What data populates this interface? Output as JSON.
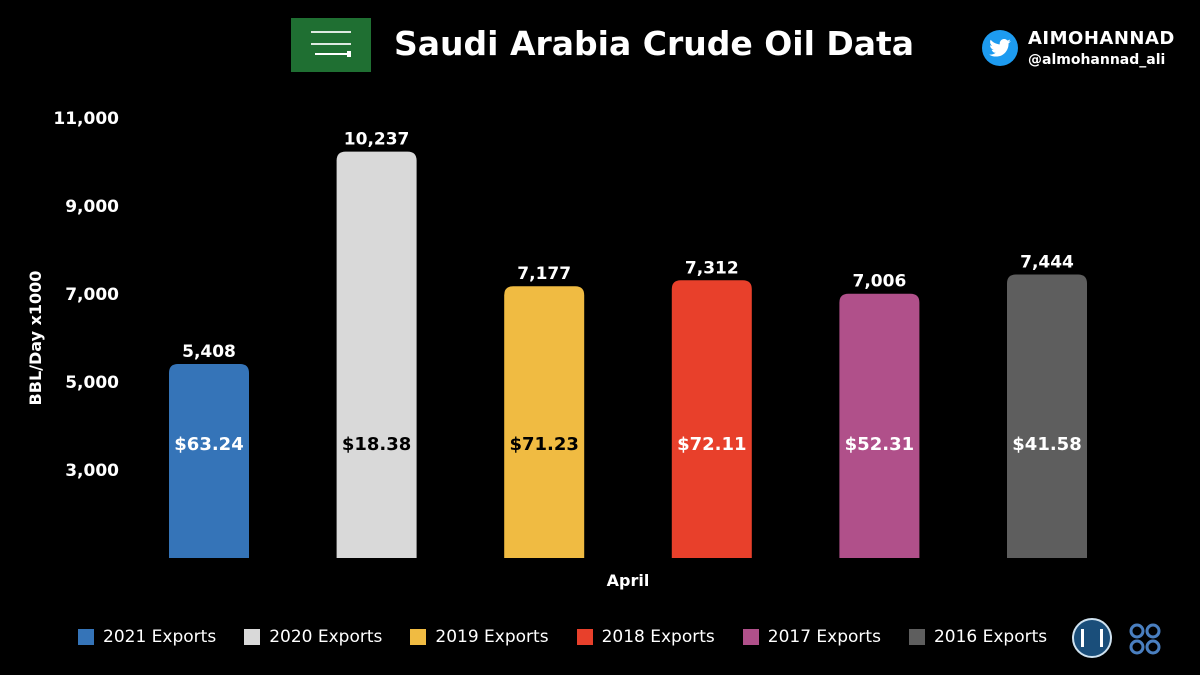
{
  "header": {
    "title": "Saudi Arabia Crude Oil Data",
    "handle_name": "AIMOHANNAD",
    "handle_id": "@almohannad_ali"
  },
  "colors": {
    "background": "#000000",
    "series": [
      "#3574b8",
      "#d9d9d9",
      "#f0bb42",
      "#e8402b",
      "#b0508a",
      "#5e5e5e"
    ],
    "price_text": [
      "#ffffff",
      "#000000",
      "#000000",
      "#ffffff",
      "#ffffff",
      "#ffffff"
    ]
  },
  "icons": [
    "saudi-flag-icon",
    "twitter-bird-icon",
    "opec-fund-logo-icon",
    "opec-logo-icon"
  ],
  "chart_data": {
    "type": "bar",
    "title": "Saudi Arabia Crude Oil Data",
    "xlabel": "April",
    "ylabel": "BBL/Day x1000",
    "ylim": [
      1000,
      11000
    ],
    "yticks": [
      3000,
      5000,
      7000,
      9000,
      11000
    ],
    "ytick_labels": [
      "3,000",
      "5,000",
      "7,000",
      "9,000",
      "11,000"
    ],
    "categories": [
      "2021 Exports",
      "2020 Exports",
      "2019 Exports",
      "2018 Exports",
      "2017 Exports",
      "2016 Exports"
    ],
    "values": [
      5408,
      10237,
      7177,
      7312,
      7006,
      7444
    ],
    "value_labels": [
      "5,408",
      "10,237",
      "7,177",
      "7,312",
      "7,006",
      "7,444"
    ],
    "price_labels": [
      "$63.24",
      "$18.38",
      "$71.23",
      "$72.11",
      "$52.31",
      "$41.58"
    ],
    "legend_position": "bottom",
    "grid": false
  }
}
